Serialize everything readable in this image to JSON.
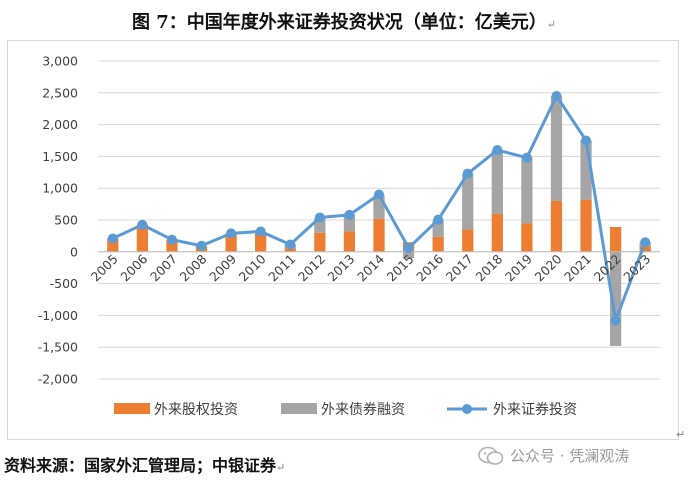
{
  "page": {
    "title": "图 7：中国年度外来证券投资状况（单位：亿美元）",
    "source": "资料来源：国家外汇管理局；中银证券",
    "watermark": "公众号 · 凭澜观涛",
    "edge_marker": "↵"
  },
  "colors": {
    "equity": "#ed7d31",
    "debt": "#a5a5a5",
    "total": "#5b9bd5",
    "grid": "#d9d9d9",
    "axis": "#bfbfbf"
  },
  "chart_data": {
    "type": "bar",
    "title": "",
    "xlabel": "",
    "ylabel": "",
    "ylim": [
      -2000,
      3000
    ],
    "yticks": [
      3000,
      2500,
      2000,
      1500,
      1000,
      500,
      0,
      -500,
      -1000,
      -1500,
      -2000
    ],
    "ytick_labels": [
      "3,000",
      "2,500",
      "2,000",
      "1,500",
      "1,000",
      "500",
      "0",
      "-500",
      "-1,000",
      "-1,500",
      "-2,000"
    ],
    "grid": true,
    "legend": "bottom",
    "categories": [
      "2005",
      "2006",
      "2007",
      "2008",
      "2009",
      "2010",
      "2011",
      "2012",
      "2013",
      "2014",
      "2015",
      "2016",
      "2017",
      "2018",
      "2019",
      "2020",
      "2021",
      "2022",
      "2023"
    ],
    "series": [
      {
        "name": "外来股权投资",
        "kind": "stacked-bar",
        "values": [
          210,
          430,
          185,
          90,
          280,
          310,
          55,
          300,
          320,
          520,
          150,
          235,
          350,
          600,
          450,
          800,
          820,
          390,
          95
        ]
      },
      {
        "name": "外来债券融资",
        "kind": "stacked-bar",
        "values": [
          0,
          0,
          0,
          0,
          10,
          0,
          65,
          230,
          260,
          370,
          -100,
          270,
          880,
          1000,
          1030,
          1650,
          930,
          -1480,
          55
        ]
      },
      {
        "name": "外来证券投资",
        "kind": "line",
        "values": [
          210,
          425,
          190,
          95,
          290,
          320,
          115,
          540,
          580,
          900,
          60,
          505,
          1230,
          1600,
          1480,
          2450,
          1750,
          -1080,
          150
        ]
      }
    ]
  }
}
